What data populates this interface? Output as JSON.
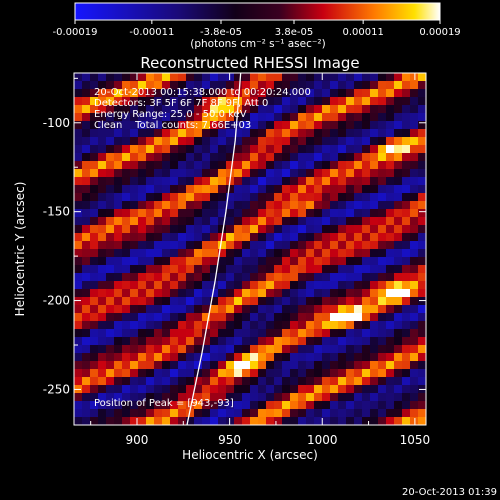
{
  "colorbar": {
    "ticks": [
      "-0.00019",
      "-0.00011",
      "-3.8e-05",
      "3.8e-05",
      "0.00011",
      "0.00019"
    ],
    "tick_values": [
      -0.00019,
      -0.00011,
      -3.8e-05,
      3.8e-05,
      0.00011,
      0.00019
    ],
    "range": [
      -0.00019,
      0.00019
    ],
    "unit_label": "(photons cm⁻² s⁻¹ asec⁻²)",
    "colormap": "rhessi-blue-black-red-yellow-white"
  },
  "chart_data": {
    "type": "heatmap",
    "title": "Reconstructed RHESSI Image",
    "xlabel": "Heliocentric X (arcsec)",
    "ylabel": "Heliocentric Y (arcsec)",
    "xlim": [
      866,
      1056
    ],
    "ylim": [
      -270,
      -72
    ],
    "xticks": [
      900,
      950,
      1000,
      1050
    ],
    "yticks": [
      -100,
      -150,
      -200,
      -250
    ],
    "annotations": [
      "20-Oct-2013 00:15:38.000 to 00:20:24.000",
      "Detectors: 3F 5F 6F 7F 8F 9F, Att 0",
      "Energy Range: 25.0 - 50.0 keV",
      "Clean    Total counts: 7.66E+03"
    ],
    "peak_label": "Position of Peak = [943,-93]",
    "peak": [
      943,
      -93
    ],
    "limb_curve": [
      [
        927,
        -270
      ],
      [
        935,
        -230
      ],
      [
        942,
        -190
      ],
      [
        948,
        -150
      ],
      [
        953,
        -110
      ],
      [
        956,
        -72
      ]
    ],
    "pattern_peaks": [
      {
        "x": 880,
        "y": -148,
        "level": 1.0
      },
      {
        "x": 940,
        "y": -88,
        "level": 0.95
      },
      {
        "x": 1015,
        "y": -210,
        "level": 0.9
      },
      {
        "x": 1040,
        "y": -195,
        "level": 0.85
      },
      {
        "x": 1035,
        "y": -112,
        "level": 0.8
      },
      {
        "x": 985,
        "y": -200,
        "level": 0.8
      },
      {
        "x": 960,
        "y": -238,
        "level": 0.75
      },
      {
        "x": 995,
        "y": -150,
        "level": 0.7
      }
    ]
  },
  "footer": {
    "timestamp": "20-Oct-2013 01:39"
  }
}
